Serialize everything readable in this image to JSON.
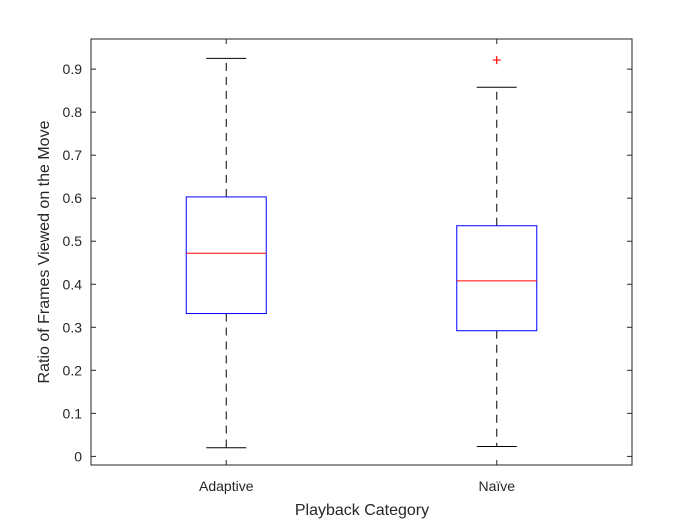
{
  "chart_data": {
    "type": "box",
    "xlabel": "Playback Category",
    "ylabel": "Ratio of Frames Viewed on the Move",
    "ylim": [
      -0.02,
      0.97
    ],
    "yticks": [
      0,
      0.1,
      0.2,
      0.3,
      0.4,
      0.5,
      0.6,
      0.7,
      0.8,
      0.9
    ],
    "ytick_labels": [
      "0",
      "0.1",
      "0.2",
      "0.3",
      "0.4",
      "0.5",
      "0.6",
      "0.7",
      "0.8",
      "0.9"
    ],
    "categories": [
      "Adaptive",
      "Naïve"
    ],
    "boxes": [
      {
        "category": "Adaptive",
        "whisker_low": 0.02,
        "q1": 0.332,
        "median": 0.472,
        "q3": 0.603,
        "whisker_high": 0.925,
        "outliers": []
      },
      {
        "category": "Naïve",
        "whisker_low": 0.023,
        "q1": 0.292,
        "median": 0.408,
        "q3": 0.536,
        "whisker_high": 0.858,
        "outliers": [
          0.921
        ]
      }
    ],
    "colors": {
      "box": "#0000ff",
      "median": "#ff0000",
      "whisker": "#000000",
      "outlier": "#ff0000",
      "axis": "#262626"
    },
    "grid": false
  }
}
